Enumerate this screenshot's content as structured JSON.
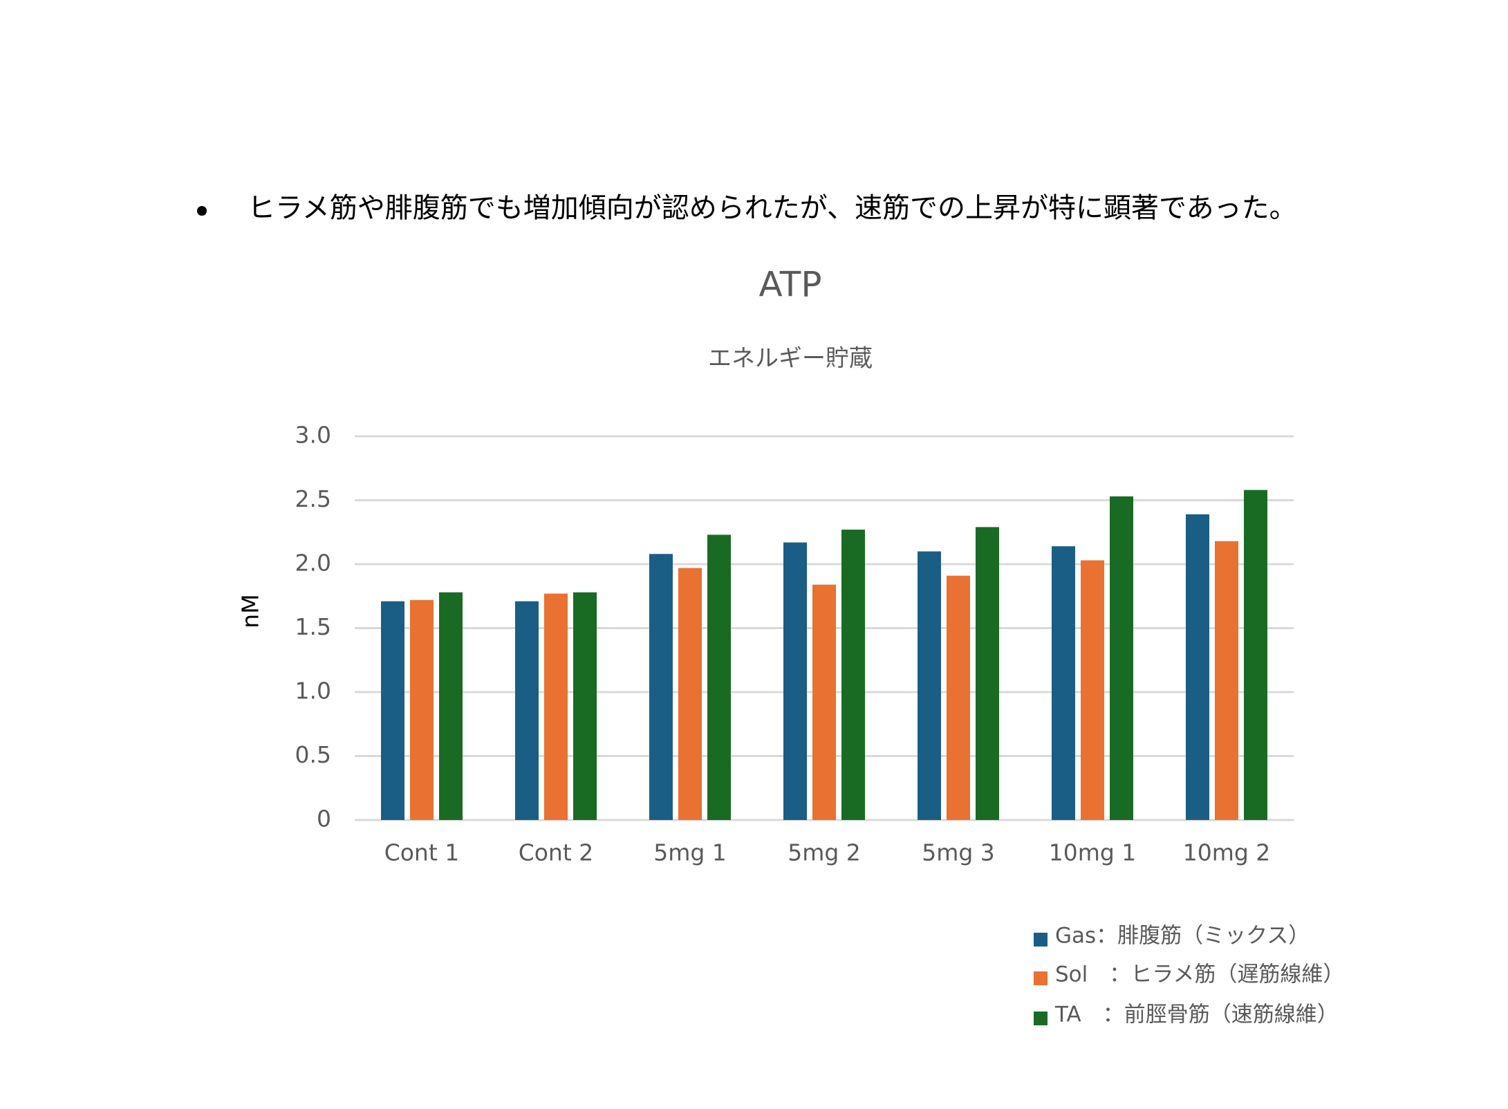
{
  "bullet_text": "ヒラメ筋や腓腹筋でも増加傾向が認められたが、速筋での上昇が特に顕著であった。",
  "chart_data": {
    "type": "bar",
    "title": "ATP",
    "subtitle": "エネルギー貯蔵",
    "y_label": "nM",
    "categories": [
      "Cont 1",
      "Cont 2",
      "5mg 1",
      "5mg 2",
      "5mg 3",
      "10mg 1",
      "10mg 2"
    ],
    "series": [
      {
        "name": "Gas：腓腹筋（ミックス）",
        "color": "#1a5e85",
        "values": [
          1.71,
          1.71,
          2.08,
          2.17,
          2.1,
          2.14,
          2.39
        ]
      },
      {
        "name": "Sol　：ヒラメ筋（遅筋線維）",
        "color": "#e97132",
        "values": [
          1.72,
          1.77,
          1.97,
          1.84,
          1.91,
          2.03,
          2.18
        ]
      },
      {
        "name": "TA　：前脛骨筋（速筋線維）",
        "color": "#196b24",
        "values": [
          1.78,
          1.78,
          2.23,
          2.27,
          2.29,
          2.53,
          2.58
        ]
      }
    ],
    "ylim": [
      0,
      3
    ],
    "yticks": [
      0,
      0.5,
      {
        "value": 1,
        "label": "1.0"
      },
      1.5,
      {
        "value": 2,
        "label": "2.0"
      },
      2.5,
      {
        "value": 3,
        "label": "3.0"
      }
    ],
    "grid": true,
    "legend": "bottom-right"
  }
}
